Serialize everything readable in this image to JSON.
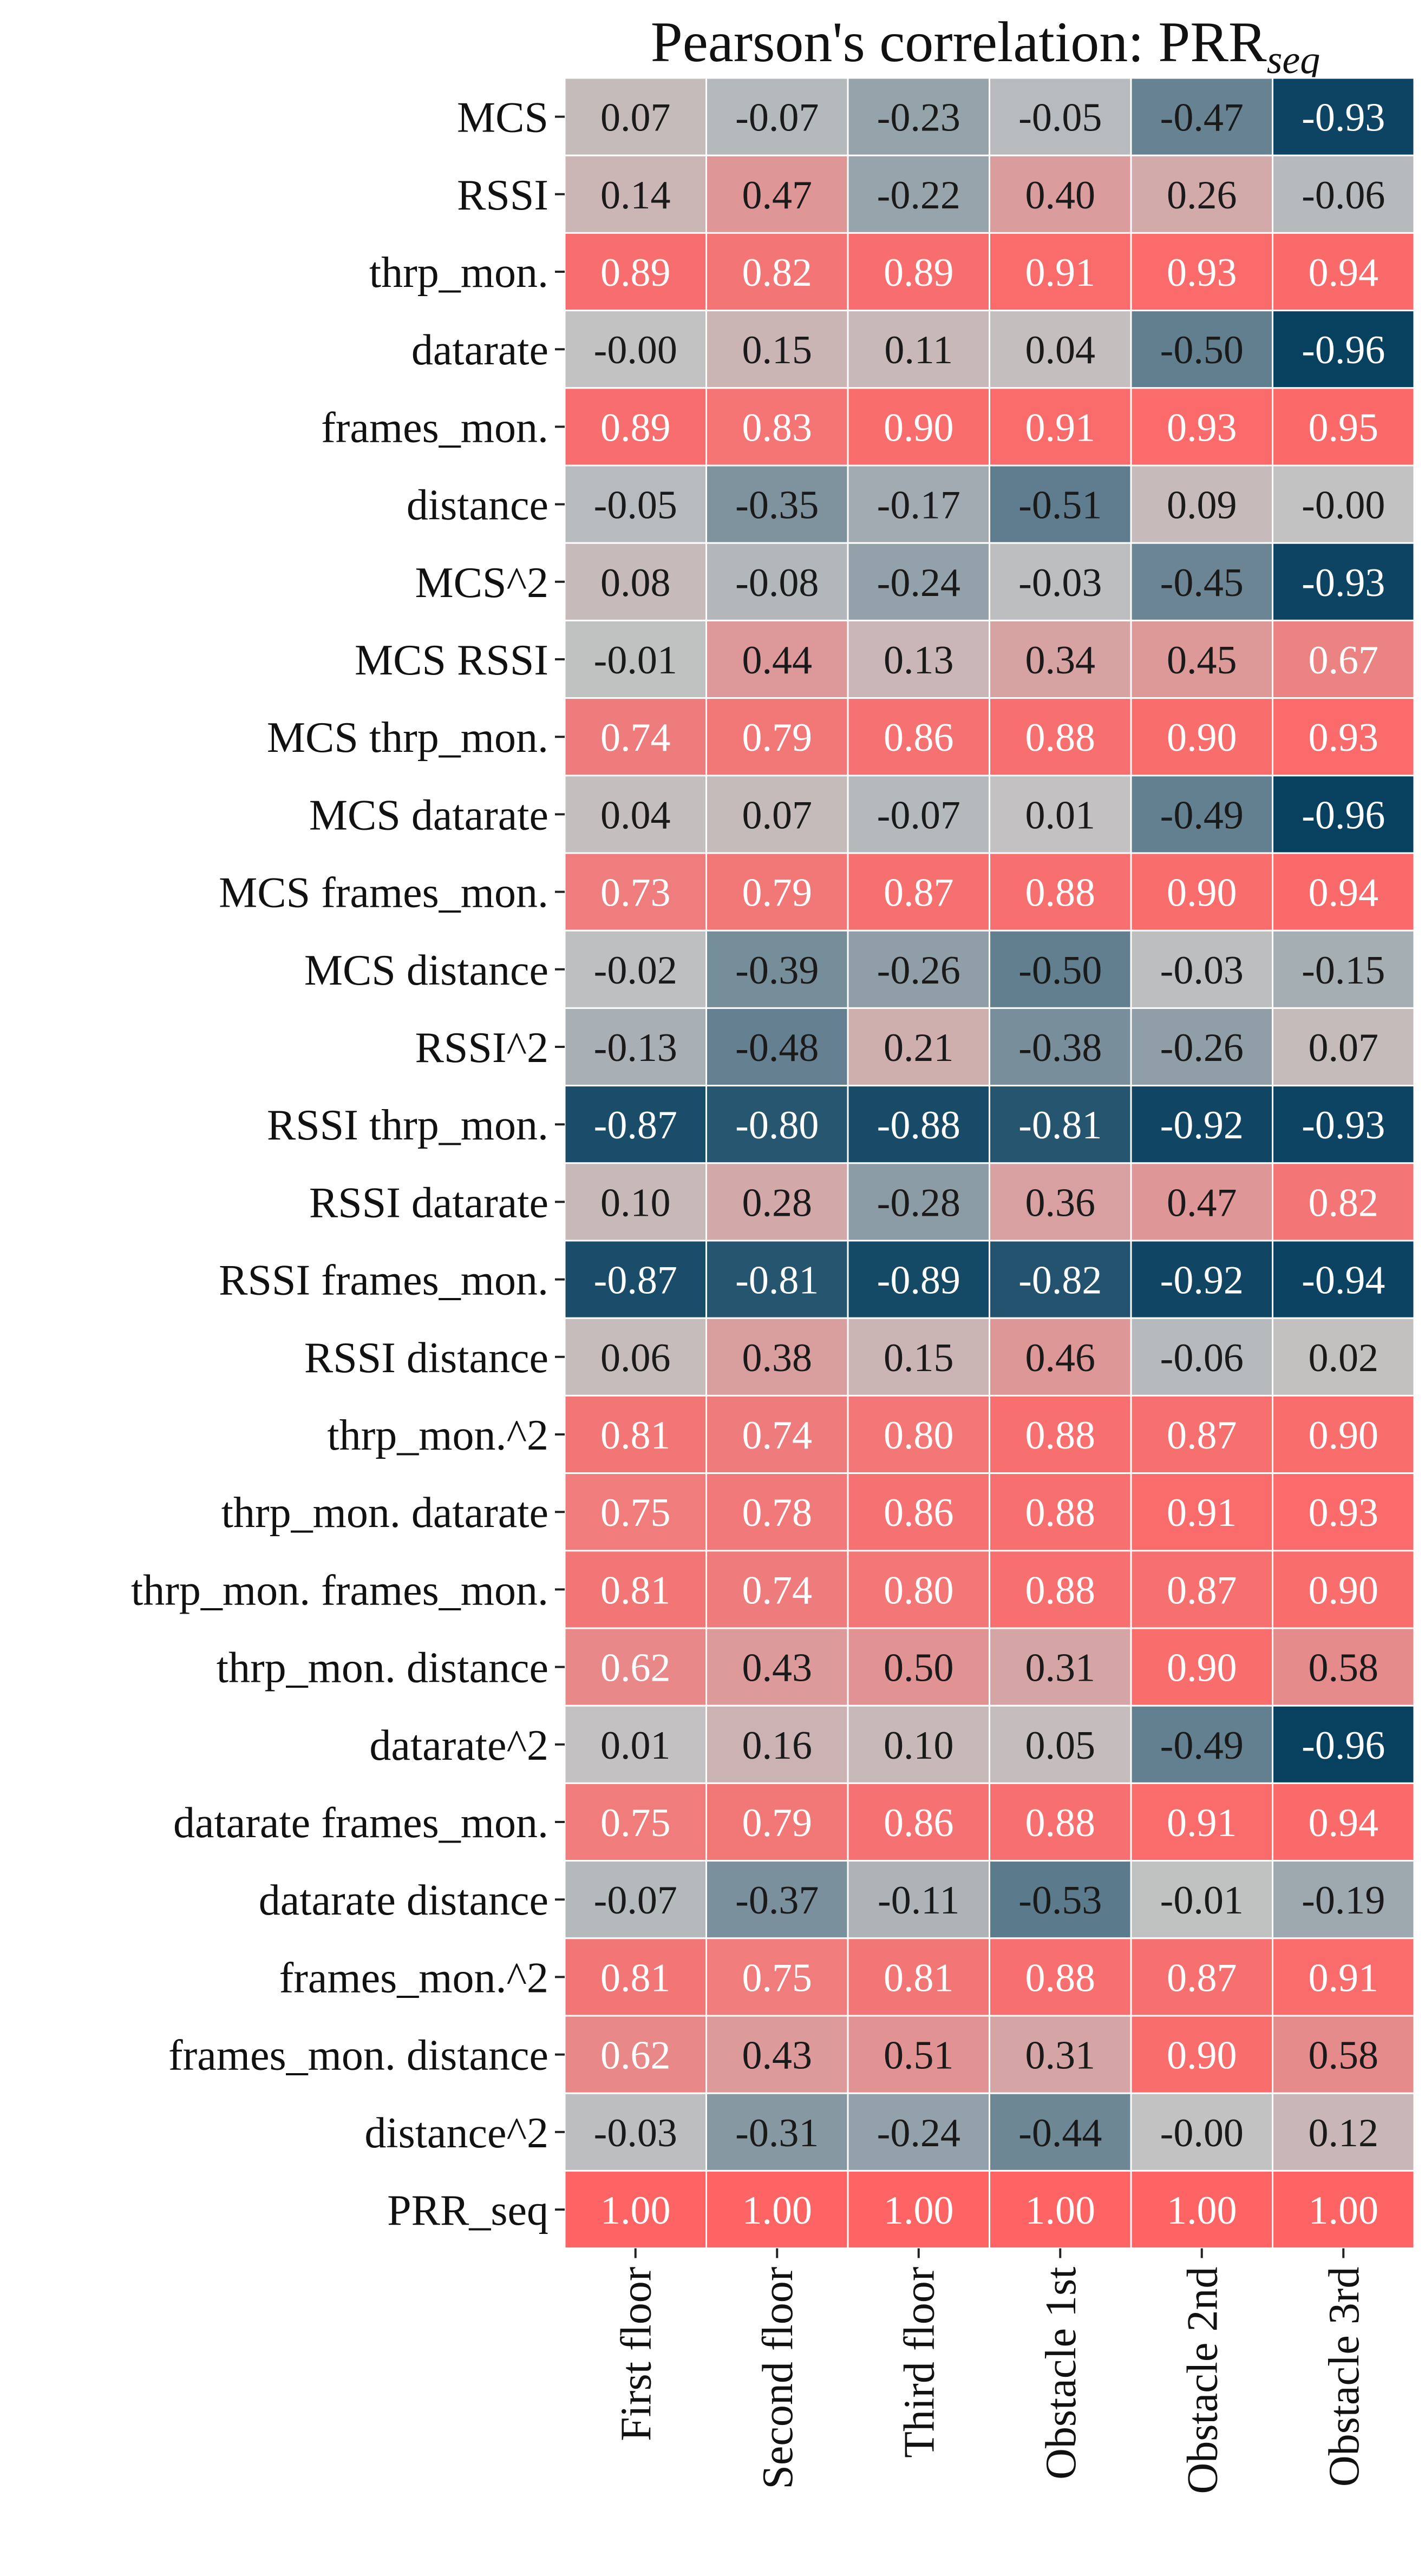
{
  "chart_data": {
    "type": "heatmap",
    "title": "Pearson's correlation: PRR",
    "title_subscript": "seq",
    "x_categories": [
      "First floor",
      "Second floor",
      "Third floor",
      "Obstacle 1st",
      "Obstacle 2nd",
      "Obstacle 3rd"
    ],
    "y_categories": [
      "MCS",
      "RSSI",
      "thrp_mon.",
      "datarate",
      "frames_mon.",
      "distance",
      "MCS^2",
      "MCS RSSI",
      "MCS thrp_mon.",
      "MCS datarate",
      "MCS frames_mon.",
      "MCS distance",
      "RSSI^2",
      "RSSI thrp_mon.",
      "RSSI datarate",
      "RSSI frames_mon.",
      "RSSI distance",
      "thrp_mon.^2",
      "thrp_mon. datarate",
      "thrp_mon. frames_mon.",
      "thrp_mon. distance",
      "datarate^2",
      "datarate frames_mon.",
      "datarate distance",
      "frames_mon.^2",
      "frames_mon. distance",
      "distance^2",
      "PRR_seq"
    ],
    "values": [
      [
        0.07,
        -0.07,
        -0.23,
        -0.05,
        -0.47,
        -0.93
      ],
      [
        0.14,
        0.47,
        -0.22,
        0.4,
        0.26,
        -0.06
      ],
      [
        0.89,
        0.82,
        0.89,
        0.91,
        0.93,
        0.94
      ],
      [
        -0.0,
        0.15,
        0.11,
        0.04,
        -0.5,
        -0.96
      ],
      [
        0.89,
        0.83,
        0.9,
        0.91,
        0.93,
        0.95
      ],
      [
        -0.05,
        -0.35,
        -0.17,
        -0.51,
        0.09,
        -0.0
      ],
      [
        0.08,
        -0.08,
        -0.24,
        -0.03,
        -0.45,
        -0.93
      ],
      [
        -0.01,
        0.44,
        0.13,
        0.34,
        0.45,
        0.67
      ],
      [
        0.74,
        0.79,
        0.86,
        0.88,
        0.9,
        0.93
      ],
      [
        0.04,
        0.07,
        -0.07,
        0.01,
        -0.49,
        -0.96
      ],
      [
        0.73,
        0.79,
        0.87,
        0.88,
        0.9,
        0.94
      ],
      [
        -0.02,
        -0.39,
        -0.26,
        -0.5,
        -0.03,
        -0.15
      ],
      [
        -0.13,
        -0.48,
        0.21,
        -0.38,
        -0.26,
        0.07
      ],
      [
        -0.87,
        -0.8,
        -0.88,
        -0.81,
        -0.92,
        -0.93
      ],
      [
        0.1,
        0.28,
        -0.28,
        0.36,
        0.47,
        0.82
      ],
      [
        -0.87,
        -0.81,
        -0.89,
        -0.82,
        -0.92,
        -0.94
      ],
      [
        0.06,
        0.38,
        0.15,
        0.46,
        -0.06,
        0.02
      ],
      [
        0.81,
        0.74,
        0.8,
        0.88,
        0.87,
        0.9
      ],
      [
        0.75,
        0.78,
        0.86,
        0.88,
        0.91,
        0.93
      ],
      [
        0.81,
        0.74,
        0.8,
        0.88,
        0.87,
        0.9
      ],
      [
        0.62,
        0.43,
        0.5,
        0.31,
        0.9,
        0.58
      ],
      [
        0.01,
        0.16,
        0.1,
        0.05,
        -0.49,
        -0.96
      ],
      [
        0.75,
        0.79,
        0.86,
        0.88,
        0.91,
        0.94
      ],
      [
        -0.07,
        -0.37,
        -0.11,
        -0.53,
        -0.01,
        -0.19
      ],
      [
        0.81,
        0.75,
        0.81,
        0.88,
        0.87,
        0.91
      ],
      [
        0.62,
        0.43,
        0.51,
        0.31,
        0.9,
        0.58
      ],
      [
        -0.03,
        -0.31,
        -0.24,
        -0.44,
        -0.0,
        0.12
      ],
      [
        1.0,
        1.0,
        1.0,
        1.0,
        1.0,
        1.0
      ]
    ],
    "value_format_decimals": 2,
    "color_range": [
      -1,
      1
    ],
    "colors": {
      "negative_end": "#003b5c",
      "mid": "#c2c2c2",
      "positive_end": "#ff6464",
      "cell_border": "#ffffff",
      "text_dark": "#1a1a1a",
      "text_light": "#ffffff"
    },
    "legend": "none",
    "grid": false
  }
}
